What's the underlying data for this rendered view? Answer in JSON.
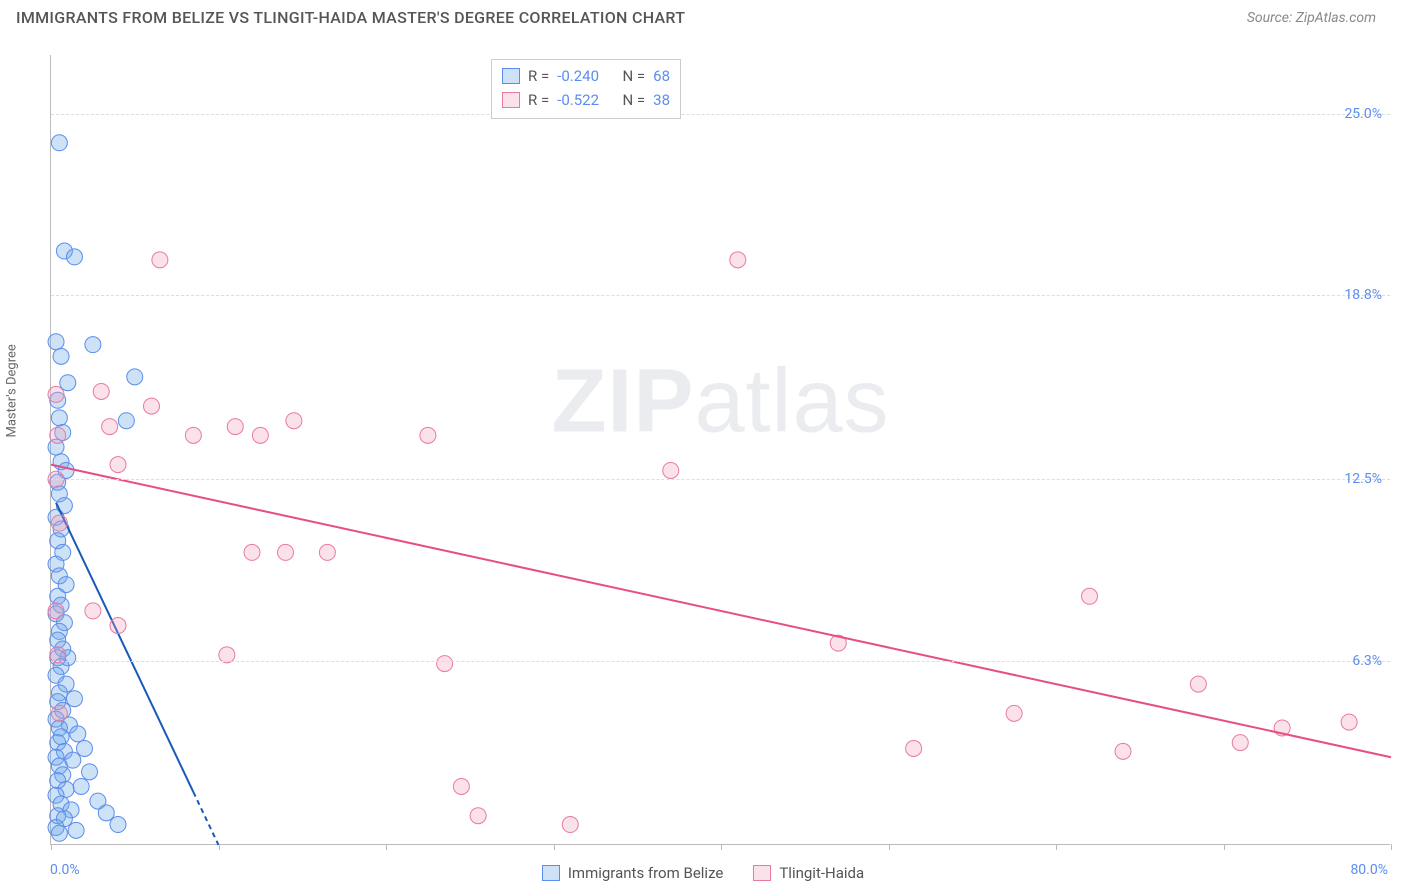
{
  "header": {
    "title": "IMMIGRANTS FROM BELIZE VS TLINGIT-HAIDA MASTER'S DEGREE CORRELATION CHART",
    "source": "Source: ZipAtlas.com"
  },
  "watermark": {
    "bold": "ZIP",
    "rest": "atlas"
  },
  "chart": {
    "type": "scatter",
    "y_label": "Master's Degree",
    "background_color": "#ffffff",
    "grid_color": "#dddddd",
    "axis_color": "#bbbbbb",
    "xlim": [
      0,
      80
    ],
    "ylim": [
      0,
      27
    ],
    "x_min_label": "0.0%",
    "x_max_label": "80.0%",
    "x_ticks": [
      0,
      10,
      20,
      30,
      40,
      50,
      60,
      70,
      80
    ],
    "y_ticks": [
      {
        "v": 6.3,
        "label": "6.3%"
      },
      {
        "v": 12.5,
        "label": "12.5%"
      },
      {
        "v": 18.8,
        "label": "18.8%"
      },
      {
        "v": 25.0,
        "label": "25.0%"
      }
    ],
    "marker_radius": 8,
    "line_width": 2,
    "series": [
      {
        "name": "Immigrants from Belize",
        "color": "#6fa8e8",
        "fill": "rgba(111,168,232,0.35)",
        "stroke": "#5b8def",
        "line_color": "#1959b8",
        "R": "-0.240",
        "N": "68",
        "trend": {
          "x1": 0.3,
          "y1": 11.7,
          "x2": 10.0,
          "y2": 0.0,
          "dash_from_x": 8.5
        },
        "points": [
          [
            0.5,
            24.0
          ],
          [
            0.8,
            20.3
          ],
          [
            1.4,
            20.1
          ],
          [
            0.3,
            17.2
          ],
          [
            0.6,
            16.7
          ],
          [
            1.0,
            15.8
          ],
          [
            0.4,
            15.2
          ],
          [
            0.5,
            14.6
          ],
          [
            0.7,
            14.1
          ],
          [
            0.3,
            13.6
          ],
          [
            0.6,
            13.1
          ],
          [
            0.9,
            12.8
          ],
          [
            0.4,
            12.4
          ],
          [
            0.5,
            12.0
          ],
          [
            0.8,
            11.6
          ],
          [
            0.3,
            11.2
          ],
          [
            0.6,
            10.8
          ],
          [
            0.4,
            10.4
          ],
          [
            0.7,
            10.0
          ],
          [
            0.3,
            9.6
          ],
          [
            0.5,
            9.2
          ],
          [
            0.9,
            8.9
          ],
          [
            0.4,
            8.5
          ],
          [
            0.6,
            8.2
          ],
          [
            0.3,
            7.9
          ],
          [
            0.8,
            7.6
          ],
          [
            0.5,
            7.3
          ],
          [
            0.4,
            7.0
          ],
          [
            0.7,
            6.7
          ],
          [
            1.0,
            6.4
          ],
          [
            0.4,
            6.4
          ],
          [
            0.6,
            6.1
          ],
          [
            0.3,
            5.8
          ],
          [
            0.9,
            5.5
          ],
          [
            0.5,
            5.2
          ],
          [
            1.4,
            5.0
          ],
          [
            0.4,
            4.9
          ],
          [
            0.7,
            4.6
          ],
          [
            0.3,
            4.3
          ],
          [
            1.1,
            4.1
          ],
          [
            0.5,
            4.0
          ],
          [
            1.6,
            3.8
          ],
          [
            0.6,
            3.7
          ],
          [
            0.4,
            3.5
          ],
          [
            2.0,
            3.3
          ],
          [
            0.8,
            3.2
          ],
          [
            0.3,
            3.0
          ],
          [
            1.3,
            2.9
          ],
          [
            0.5,
            2.7
          ],
          [
            2.3,
            2.5
          ],
          [
            0.7,
            2.4
          ],
          [
            0.4,
            2.2
          ],
          [
            1.8,
            2.0
          ],
          [
            0.9,
            1.9
          ],
          [
            0.3,
            1.7
          ],
          [
            2.8,
            1.5
          ],
          [
            0.6,
            1.4
          ],
          [
            1.2,
            1.2
          ],
          [
            3.3,
            1.1
          ],
          [
            0.4,
            1.0
          ],
          [
            0.8,
            0.9
          ],
          [
            4.0,
            0.7
          ],
          [
            0.3,
            0.6
          ],
          [
            1.5,
            0.5
          ],
          [
            0.5,
            0.4
          ],
          [
            2.5,
            17.1
          ],
          [
            5.0,
            16.0
          ],
          [
            4.5,
            14.5
          ]
        ]
      },
      {
        "name": "Tlingit-Haida",
        "color": "#f29bb7",
        "fill": "rgba(242,155,183,0.30)",
        "stroke": "#e97aa0",
        "line_color": "#e74d86",
        "R": "-0.522",
        "N": "38",
        "trend": {
          "x1": 0.0,
          "y1": 13.0,
          "x2": 80.0,
          "y2": 3.0
        },
        "points": [
          [
            0.3,
            15.4
          ],
          [
            0.4,
            14.0
          ],
          [
            0.3,
            12.5
          ],
          [
            0.5,
            11.0
          ],
          [
            0.3,
            8.0
          ],
          [
            0.4,
            6.5
          ],
          [
            0.5,
            4.5
          ],
          [
            6.5,
            20.0
          ],
          [
            3.0,
            15.5
          ],
          [
            6.0,
            15.0
          ],
          [
            3.5,
            14.3
          ],
          [
            8.5,
            14.0
          ],
          [
            11.0,
            14.3
          ],
          [
            12.5,
            14.0
          ],
          [
            4.0,
            13.0
          ],
          [
            14.5,
            14.5
          ],
          [
            2.5,
            8.0
          ],
          [
            4.0,
            7.5
          ],
          [
            12.0,
            10.0
          ],
          [
            14.0,
            10.0
          ],
          [
            16.5,
            10.0
          ],
          [
            10.5,
            6.5
          ],
          [
            22.5,
            14.0
          ],
          [
            25.5,
            1.0
          ],
          [
            31.0,
            0.7
          ],
          [
            23.5,
            6.2
          ],
          [
            24.5,
            2.0
          ],
          [
            41.0,
            20.0
          ],
          [
            37.0,
            12.8
          ],
          [
            47.0,
            6.9
          ],
          [
            51.5,
            3.3
          ],
          [
            57.5,
            4.5
          ],
          [
            62.0,
            8.5
          ],
          [
            64.0,
            3.2
          ],
          [
            68.5,
            5.5
          ],
          [
            71.0,
            3.5
          ],
          [
            73.5,
            4.0
          ],
          [
            77.5,
            4.2
          ]
        ]
      }
    ]
  },
  "legend_labels": {
    "R": "R =",
    "N": "N ="
  }
}
